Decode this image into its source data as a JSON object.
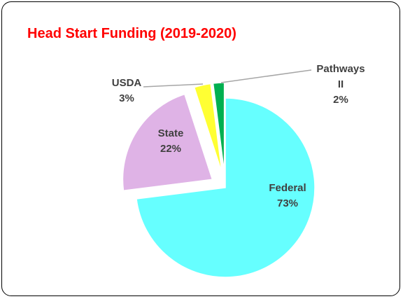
{
  "chart_data": {
    "type": "pie",
    "title": "Head Start Funding (2019-2020)",
    "categories": [
      "Federal",
      "State",
      "USDA",
      "Pathways II"
    ],
    "values": [
      73,
      22,
      3,
      2
    ],
    "value_labels": [
      "73%",
      "22%",
      "3%",
      "2%"
    ],
    "colors": [
      "#66ffff",
      "#dfb3e6",
      "#ffff33",
      "#00b050"
    ]
  }
}
